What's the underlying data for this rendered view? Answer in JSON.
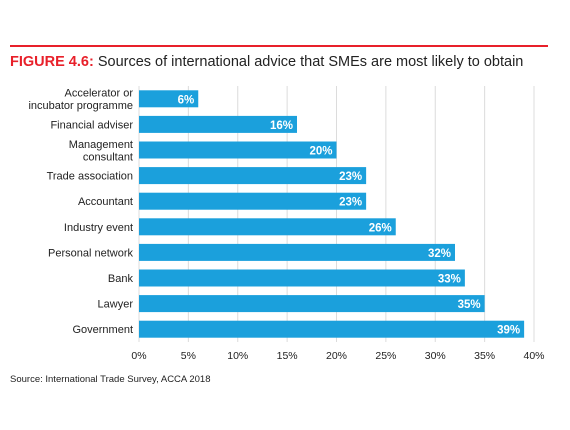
{
  "figure": {
    "label": "FIGURE 4.6:",
    "title": "Sources of international advice that SMEs are most likely to obtain",
    "source": "Source: International Trade Survey, ACCA 2018"
  },
  "colors": {
    "accent": "#e8202a",
    "bar": "#1ba0dc",
    "grid": "#dcdcdc",
    "text": "#222222"
  },
  "chart_data": {
    "type": "bar",
    "orientation": "horizontal",
    "categories": [
      [
        "Accelerator or",
        "incubator programme"
      ],
      [
        "Financial adviser"
      ],
      [
        "Management",
        "consultant"
      ],
      [
        "Trade association"
      ],
      [
        "Accountant"
      ],
      [
        "Industry event"
      ],
      [
        "Personal network"
      ],
      [
        "Bank"
      ],
      [
        "Lawyer"
      ],
      [
        "Government"
      ]
    ],
    "values": [
      6,
      16,
      20,
      23,
      23,
      26,
      32,
      33,
      35,
      39
    ],
    "value_labels": [
      "6%",
      "16%",
      "20%",
      "23%",
      "23%",
      "26%",
      "32%",
      "33%",
      "35%",
      "39%"
    ],
    "xticks": [
      0,
      5,
      10,
      15,
      20,
      25,
      30,
      35,
      40
    ],
    "xtick_labels": [
      "0%",
      "5%",
      "10%",
      "15%",
      "20%",
      "25%",
      "30%",
      "35%",
      "40%"
    ],
    "xlim": [
      0,
      40
    ],
    "grid": true
  }
}
